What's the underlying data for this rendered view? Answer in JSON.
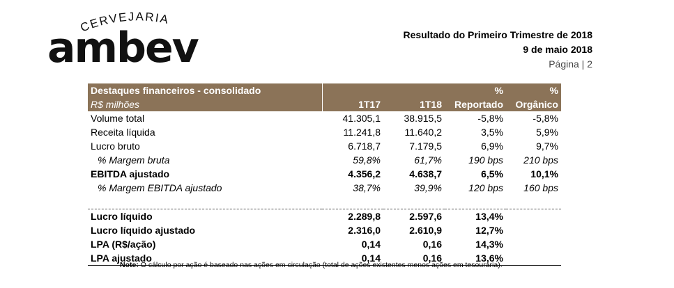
{
  "logo": {
    "small": "CERVEJARIA",
    "main": "ambev"
  },
  "header": {
    "title": "Resultado do Primeiro Trimestre de 2018",
    "date": "9 de maio 2018",
    "page": "Página | 2"
  },
  "table": {
    "title": "Destaques financeiros - consolidado",
    "subtitle": "R$ milhões",
    "col1": "1T17",
    "col2": "1T18",
    "col3_top": "%",
    "col3": "Reportado",
    "col4_top": "%",
    "col4": "Orgânico",
    "rows": [
      {
        "label": "Volume total",
        "v1": "41.305,1",
        "v2": "38.915,5",
        "v3": "-5,8%",
        "v4": "-5,8%"
      },
      {
        "label": "Receita líquida",
        "v1": "11.241,8",
        "v2": "11.640,2",
        "v3": "3,5%",
        "v4": "5,9%"
      },
      {
        "label": "Lucro bruto",
        "v1": "6.718,7",
        "v2": "7.179,5",
        "v3": "6,9%",
        "v4": "9,7%"
      },
      {
        "label": "% Margem bruta",
        "v1": "59,8%",
        "v2": "61,7%",
        "v3": "190 bps",
        "v4": "210 bps"
      },
      {
        "label": "EBITDA ajustado",
        "v1": "4.356,2",
        "v2": "4.638,7",
        "v3": "6,5%",
        "v4": "10,1%"
      },
      {
        "label": "% Margem EBITDA ajustado",
        "v1": "38,7%",
        "v2": "39,9%",
        "v3": "120 bps",
        "v4": "160 bps"
      },
      {
        "label": "Lucro líquido",
        "v1": "2.289,8",
        "v2": "2.597,6",
        "v3": "13,4%",
        "v4": ""
      },
      {
        "label": "Lucro líquido ajustado",
        "v1": "2.316,0",
        "v2": "2.610,9",
        "v3": "12,7%",
        "v4": ""
      },
      {
        "label": "LPA (R$/ação)",
        "v1": "0,14",
        "v2": "0,16",
        "v3": "14,3%",
        "v4": ""
      },
      {
        "label": "LPA ajustado",
        "v1": "0,14",
        "v2": "0,16",
        "v3": "13,6%",
        "v4": ""
      }
    ]
  },
  "note": {
    "label": "Note:",
    "text": " O cálculo por ação é baseado nas ações em circulação (total de ações existentes menos ações em tesouraria)."
  }
}
